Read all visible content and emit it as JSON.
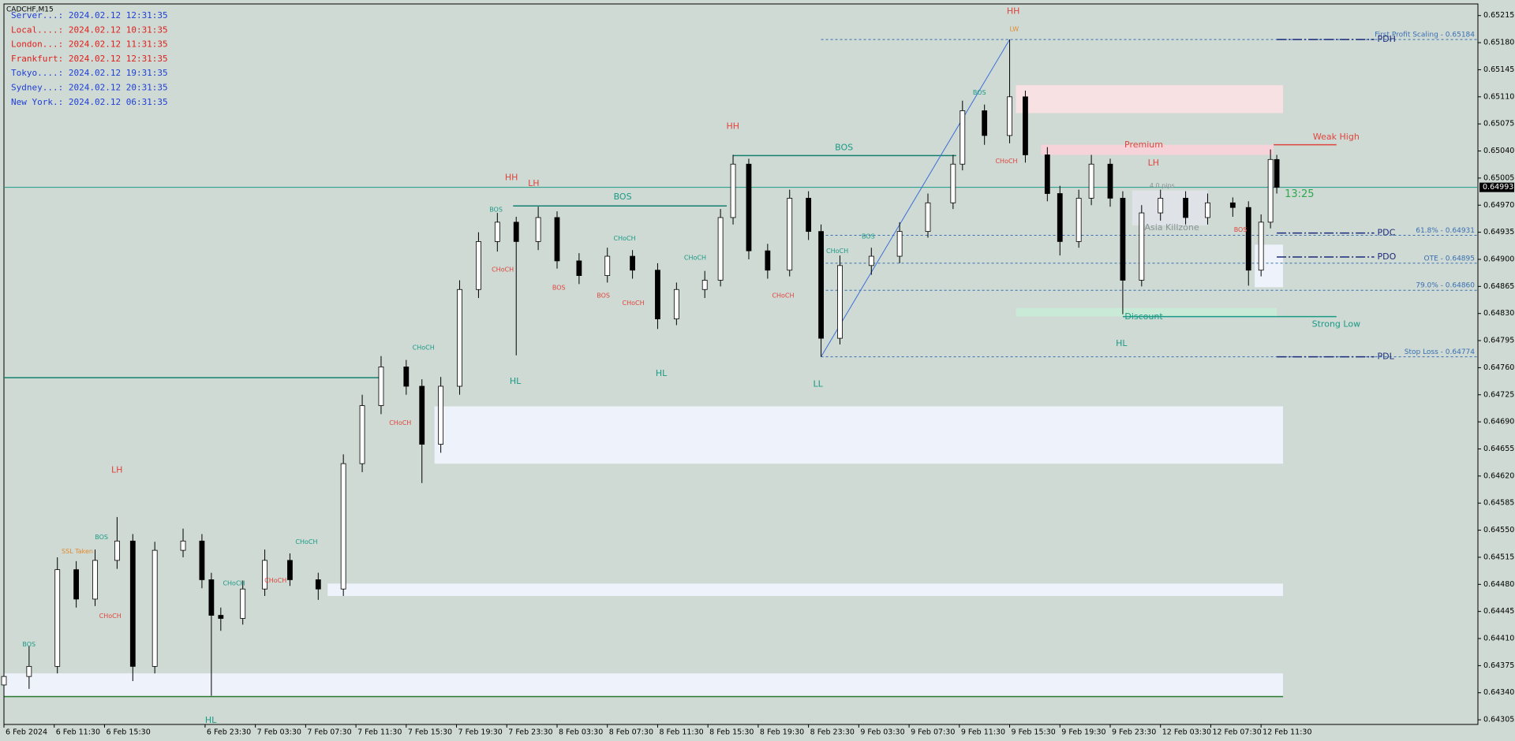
{
  "chart_data": {
    "type": "candlestick",
    "symbol": "CADCHF,M15",
    "clocks": [
      {
        "text": "Server...: 2024.02.12 12:31:35",
        "color": "#1f3fd6"
      },
      {
        "text": "Local....: 2024.02.12 10:31:35",
        "color": "#e0201a"
      },
      {
        "text": "London...: 2024.02.12 11:31:35",
        "color": "#e0201a"
      },
      {
        "text": "Frankfurt: 2024.02.12 12:31:35",
        "color": "#e0201a"
      },
      {
        "text": "Tokyo....: 2024.02.12 19:31:35",
        "color": "#1f3fd6"
      },
      {
        "text": "Sydney...: 2024.02.12 20:31:35",
        "color": "#1f3fd6"
      },
      {
        "text": "New York.: 2024.02.12 06:31:35",
        "color": "#1f3fd6"
      }
    ],
    "xlim": [
      0,
      469
    ],
    "xticks": [
      {
        "value": 0,
        "label": "6 Feb 2024"
      },
      {
        "value": 16,
        "label": "6 Feb 11:30"
      },
      {
        "value": 32,
        "label": "6 Feb 15:30"
      },
      {
        "value": 64,
        "label": "6 Feb 23:30"
      },
      {
        "value": 80,
        "label": "7 Feb 03:30"
      },
      {
        "value": 96,
        "label": "7 Feb 07:30"
      },
      {
        "value": 112,
        "label": "7 Feb 11:30"
      },
      {
        "value": 128,
        "label": "7 Feb 15:30"
      },
      {
        "value": 144,
        "label": "7 Feb 19:30"
      },
      {
        "value": 160,
        "label": "7 Feb 23:30"
      },
      {
        "value": 176,
        "label": "8 Feb 03:30"
      },
      {
        "value": 192,
        "label": "8 Feb 07:30"
      },
      {
        "value": 208,
        "label": "8 Feb 11:30"
      },
      {
        "value": 224,
        "label": "8 Feb 15:30"
      },
      {
        "value": 240,
        "label": "8 Feb 19:30"
      },
      {
        "value": 256,
        "label": "8 Feb 23:30"
      },
      {
        "value": 272,
        "label": "9 Feb 03:30"
      },
      {
        "value": 288,
        "label": "9 Feb 07:30"
      },
      {
        "value": 304,
        "label": "9 Feb 11:30"
      },
      {
        "value": 320,
        "label": "9 Feb 15:30"
      },
      {
        "value": 336,
        "label": "9 Feb 19:30"
      },
      {
        "value": 352,
        "label": "9 Feb 23:30"
      },
      {
        "value": 368,
        "label": "12 Feb 03:30"
      },
      {
        "value": 384,
        "label": "12 Feb 07:30"
      },
      {
        "value": 400,
        "label": "12 Feb 11:30"
      }
    ],
    "ylim": [
      0.64299,
      0.6523
    ],
    "yticks": [
      {
        "value": 0.65215,
        "label": "0.65215"
      },
      {
        "value": 0.6518,
        "label": "0.65180"
      },
      {
        "value": 0.65145,
        "label": "0.65145"
      },
      {
        "value": 0.6511,
        "label": "0.65110"
      },
      {
        "value": 0.65075,
        "label": "0.65075"
      },
      {
        "value": 0.6504,
        "label": "0.65040"
      },
      {
        "value": 0.65005,
        "label": "0.65005"
      },
      {
        "value": 0.6497,
        "label": "0.64970"
      },
      {
        "value": 0.64935,
        "label": "0.64935"
      },
      {
        "value": 0.649,
        "label": "0.64900"
      },
      {
        "value": 0.64865,
        "label": "0.64865"
      },
      {
        "value": 0.6483,
        "label": "0.64830"
      },
      {
        "value": 0.64795,
        "label": "0.64795"
      },
      {
        "value": 0.6476,
        "label": "0.64760"
      },
      {
        "value": 0.64725,
        "label": "0.64725"
      },
      {
        "value": 0.6469,
        "label": "0.64690"
      },
      {
        "value": 0.64655,
        "label": "0.64655"
      },
      {
        "value": 0.6462,
        "label": "0.64620"
      },
      {
        "value": 0.64585,
        "label": "0.64585"
      },
      {
        "value": 0.6455,
        "label": "0.64550"
      },
      {
        "value": 0.64515,
        "label": "0.64515"
      },
      {
        "value": 0.6448,
        "label": "0.64480"
      },
      {
        "value": 0.64445,
        "label": "0.64445"
      },
      {
        "value": 0.6441,
        "label": "0.64410"
      },
      {
        "value": 0.64375,
        "label": "0.64375"
      },
      {
        "value": 0.6434,
        "label": "0.64340"
      },
      {
        "value": 0.64305,
        "label": "0.64305"
      }
    ],
    "grid": false,
    "last_price": 0.64993,
    "candles": [
      {
        "x": 0,
        "open": 0.6435,
        "high": 0.6439,
        "low": 0.6433,
        "close": 0.64361
      },
      {
        "x": 8,
        "open": 0.64361,
        "high": 0.644,
        "low": 0.64345,
        "close": 0.64374
      },
      {
        "x": 17,
        "open": 0.64374,
        "high": 0.64515,
        "low": 0.64365,
        "close": 0.64499
      },
      {
        "x": 23,
        "open": 0.64499,
        "high": 0.6451,
        "low": 0.6445,
        "close": 0.64461
      },
      {
        "x": 29,
        "open": 0.64461,
        "high": 0.64525,
        "low": 0.64452,
        "close": 0.64511
      },
      {
        "x": 36,
        "open": 0.64511,
        "high": 0.64567,
        "low": 0.645,
        "close": 0.64536
      },
      {
        "x": 41,
        "open": 0.64536,
        "high": 0.64545,
        "low": 0.64355,
        "close": 0.64374
      },
      {
        "x": 48,
        "open": 0.64374,
        "high": 0.64535,
        "low": 0.64365,
        "close": 0.64524
      },
      {
        "x": 57,
        "open": 0.64524,
        "high": 0.64552,
        "low": 0.64515,
        "close": 0.64536
      },
      {
        "x": 63,
        "open": 0.64536,
        "high": 0.64545,
        "low": 0.64475,
        "close": 0.64486
      },
      {
        "x": 66,
        "open": 0.64486,
        "high": 0.64495,
        "low": 0.64336,
        "close": 0.6444
      },
      {
        "x": 69,
        "open": 0.6444,
        "high": 0.6445,
        "low": 0.6442,
        "close": 0.64436
      },
      {
        "x": 76,
        "open": 0.64436,
        "high": 0.64485,
        "low": 0.64428,
        "close": 0.64474
      },
      {
        "x": 83,
        "open": 0.64474,
        "high": 0.64525,
        "low": 0.64465,
        "close": 0.64511
      },
      {
        "x": 91,
        "open": 0.64511,
        "high": 0.6452,
        "low": 0.64478,
        "close": 0.64486
      },
      {
        "x": 100,
        "open": 0.64486,
        "high": 0.64495,
        "low": 0.6446,
        "close": 0.64474
      },
      {
        "x": 108,
        "open": 0.64474,
        "high": 0.64648,
        "low": 0.64465,
        "close": 0.64636
      },
      {
        "x": 114,
        "open": 0.64636,
        "high": 0.64725,
        "low": 0.64625,
        "close": 0.64711
      },
      {
        "x": 120,
        "open": 0.64711,
        "high": 0.64775,
        "low": 0.647,
        "close": 0.64761
      },
      {
        "x": 128,
        "open": 0.64761,
        "high": 0.6477,
        "low": 0.64725,
        "close": 0.64736
      },
      {
        "x": 133,
        "open": 0.64736,
        "high": 0.64745,
        "low": 0.64611,
        "close": 0.64661
      },
      {
        "x": 139,
        "open": 0.64661,
        "high": 0.64748,
        "low": 0.6465,
        "close": 0.64736
      },
      {
        "x": 145,
        "open": 0.64736,
        "high": 0.64873,
        "low": 0.64725,
        "close": 0.64861
      },
      {
        "x": 151,
        "open": 0.64861,
        "high": 0.64935,
        "low": 0.6485,
        "close": 0.64923
      },
      {
        "x": 157,
        "open": 0.64923,
        "high": 0.6496,
        "low": 0.6491,
        "close": 0.64948
      },
      {
        "x": 163,
        "open": 0.64948,
        "high": 0.64955,
        "low": 0.64776,
        "close": 0.64923
      },
      {
        "x": 170,
        "open": 0.64923,
        "high": 0.64968,
        "low": 0.64912,
        "close": 0.64954
      },
      {
        "x": 176,
        "open": 0.64954,
        "high": 0.64962,
        "low": 0.64888,
        "close": 0.64898
      },
      {
        "x": 183,
        "open": 0.64898,
        "high": 0.64908,
        "low": 0.64868,
        "close": 0.64879
      },
      {
        "x": 192,
        "open": 0.64879,
        "high": 0.64915,
        "low": 0.6487,
        "close": 0.64904
      },
      {
        "x": 200,
        "open": 0.64904,
        "high": 0.64912,
        "low": 0.64875,
        "close": 0.64886
      },
      {
        "x": 208,
        "open": 0.64886,
        "high": 0.64895,
        "low": 0.6481,
        "close": 0.64823
      },
      {
        "x": 214,
        "open": 0.64823,
        "high": 0.6487,
        "low": 0.64815,
        "close": 0.64861
      },
      {
        "x": 223,
        "open": 0.64861,
        "high": 0.64885,
        "low": 0.6485,
        "close": 0.64873
      },
      {
        "x": 228,
        "open": 0.64873,
        "high": 0.64965,
        "low": 0.64865,
        "close": 0.64954
      },
      {
        "x": 232,
        "open": 0.64954,
        "high": 0.65035,
        "low": 0.64945,
        "close": 0.65023
      },
      {
        "x": 237,
        "open": 0.65023,
        "high": 0.6503,
        "low": 0.649,
        "close": 0.64911
      },
      {
        "x": 243,
        "open": 0.64911,
        "high": 0.6492,
        "low": 0.64875,
        "close": 0.64886
      },
      {
        "x": 250,
        "open": 0.64886,
        "high": 0.6499,
        "low": 0.64878,
        "close": 0.64979
      },
      {
        "x": 256,
        "open": 0.64979,
        "high": 0.64988,
        "low": 0.64925,
        "close": 0.64936
      },
      {
        "x": 260,
        "open": 0.64936,
        "high": 0.64945,
        "low": 0.64774,
        "close": 0.64798
      },
      {
        "x": 266,
        "open": 0.64798,
        "high": 0.64905,
        "low": 0.6479,
        "close": 0.64892
      },
      {
        "x": 276,
        "open": 0.64892,
        "high": 0.64915,
        "low": 0.6488,
        "close": 0.64904
      },
      {
        "x": 285,
        "open": 0.64904,
        "high": 0.64948,
        "low": 0.64895,
        "close": 0.64936
      },
      {
        "x": 294,
        "open": 0.64936,
        "high": 0.64985,
        "low": 0.64928,
        "close": 0.64973
      },
      {
        "x": 302,
        "open": 0.64973,
        "high": 0.65035,
        "low": 0.64965,
        "close": 0.65023
      },
      {
        "x": 305,
        "open": 0.65023,
        "high": 0.65105,
        "low": 0.65015,
        "close": 0.65092
      },
      {
        "x": 312,
        "open": 0.65092,
        "high": 0.651,
        "low": 0.65048,
        "close": 0.6506
      },
      {
        "x": 320,
        "open": 0.6506,
        "high": 0.65184,
        "low": 0.6505,
        "close": 0.6511
      },
      {
        "x": 325,
        "open": 0.6511,
        "high": 0.65118,
        "low": 0.65025,
        "close": 0.65035
      },
      {
        "x": 332,
        "open": 0.65035,
        "high": 0.65045,
        "low": 0.64975,
        "close": 0.64985
      },
      {
        "x": 336,
        "open": 0.64985,
        "high": 0.64995,
        "low": 0.64905,
        "close": 0.64923
      },
      {
        "x": 342,
        "open": 0.64923,
        "high": 0.6499,
        "low": 0.64915,
        "close": 0.64979
      },
      {
        "x": 346,
        "open": 0.64979,
        "high": 0.65035,
        "low": 0.6497,
        "close": 0.65023
      },
      {
        "x": 352,
        "open": 0.65023,
        "high": 0.6503,
        "low": 0.64968,
        "close": 0.64979
      },
      {
        "x": 356,
        "open": 0.64979,
        "high": 0.64988,
        "low": 0.64829,
        "close": 0.64873
      },
      {
        "x": 362,
        "open": 0.64873,
        "high": 0.6497,
        "low": 0.64865,
        "close": 0.6496
      },
      {
        "x": 368,
        "open": 0.6496,
        "high": 0.6499,
        "low": 0.6495,
        "close": 0.64979
      },
      {
        "x": 376,
        "open": 0.64979,
        "high": 0.64988,
        "low": 0.64945,
        "close": 0.64954
      },
      {
        "x": 383,
        "open": 0.64954,
        "high": 0.64985,
        "low": 0.64945,
        "close": 0.64973
      },
      {
        "x": 391,
        "open": 0.64973,
        "high": 0.6498,
        "low": 0.64955,
        "close": 0.64967
      },
      {
        "x": 396,
        "open": 0.64967,
        "high": 0.64975,
        "low": 0.64866,
        "close": 0.64886
      },
      {
        "x": 400,
        "open": 0.64886,
        "high": 0.64958,
        "low": 0.64878,
        "close": 0.64948
      },
      {
        "x": 403,
        "open": 0.64948,
        "high": 0.65042,
        "low": 0.6494,
        "close": 0.65029
      },
      {
        "x": 405,
        "open": 0.65029,
        "high": 0.65035,
        "low": 0.64985,
        "close": 0.64993
      }
    ],
    "zones": [
      {
        "from": 322,
        "to": 407,
        "low": 0.65089,
        "high": 0.65125,
        "color": "#f8e1e3"
      },
      {
        "from": 330,
        "to": 404,
        "low": 0.65035,
        "high": 0.65048,
        "color": "#f6d3d8"
      },
      {
        "from": 137,
        "to": 407,
        "low": 0.64636,
        "high": 0.6471,
        "color": "#eef3fb"
      },
      {
        "from": 103,
        "to": 407,
        "low": 0.64465,
        "high": 0.64481,
        "color": "#eef3fb"
      },
      {
        "from": 0,
        "to": 407,
        "low": 0.64336,
        "high": 0.64365,
        "color": "#eef3fb"
      },
      {
        "from": 398,
        "to": 407,
        "low": 0.64864,
        "high": 0.64919,
        "color": "#eef3fb"
      },
      {
        "from": 322,
        "to": 405,
        "low": 0.64826,
        "high": 0.64837,
        "color": "#c9ead6"
      },
      {
        "from": 359,
        "to": 383,
        "low": 0.64944,
        "high": 0.64989,
        "color": "#dfe3e8"
      }
    ],
    "segments": [
      {
        "from": 162,
        "to": 230,
        "value": 0.64969,
        "color": "#13806e"
      },
      {
        "from": 232,
        "to": 303,
        "value": 0.65034,
        "color": "#13806e"
      },
      {
        "from": 0,
        "to": 120,
        "value": 0.64747,
        "color": "#13806e"
      },
      {
        "from": 0,
        "to": 407,
        "value": 0.64335,
        "color": "#2e7d32"
      },
      {
        "from": 404,
        "to": 424,
        "value": 0.65048,
        "color": "#e0443c"
      },
      {
        "from": 356,
        "to": 424,
        "value": 0.64826,
        "color": "#1a9a85"
      }
    ],
    "fib_levels": [
      {
        "label": "First Profit Scaling - 0.65184",
        "value": 0.65184
      },
      {
        "label": "61.8% - 0.64931",
        "value": 0.64931
      },
      {
        "label": "OTE - 0.64895",
        "value": 0.64895
      },
      {
        "label": "79.0% - 0.64860",
        "value": 0.6486
      },
      {
        "label": "Stop Loss - 0.64774",
        "value": 0.64774
      }
    ],
    "key_levels": [
      {
        "name": "PDH",
        "value": 0.65184
      },
      {
        "name": "PDC",
        "value": 0.64934
      },
      {
        "name": "PDO",
        "value": 0.64903
      },
      {
        "name": "PDL",
        "value": 0.64774
      }
    ],
    "annotations": [
      {
        "text": "HH",
        "color": "#e0443c"
      },
      {
        "text": "LW",
        "color": "#e08a2c"
      },
      {
        "text": "HH",
        "color": "#e0443c"
      },
      {
        "text": "HH",
        "color": "#e0443c"
      },
      {
        "text": "LH",
        "color": "#e0443c"
      },
      {
        "text": "LH",
        "color": "#e0443c"
      },
      {
        "text": "LH",
        "color": "#e0443c"
      },
      {
        "text": "BOS",
        "color": "#1a9a85"
      },
      {
        "text": "BOS",
        "color": "#1a9a85"
      },
      {
        "text": "HL",
        "color": "#1a9a85"
      },
      {
        "text": "HL",
        "color": "#1a9a85"
      },
      {
        "text": "LL",
        "color": "#1a9a85"
      },
      {
        "text": "HL",
        "color": "#1a9a85"
      },
      {
        "text": "HL",
        "color": "#1a9a85"
      },
      {
        "text": "Premium",
        "color": "#e0443c"
      },
      {
        "text": "Discount",
        "color": "#1a9a85"
      },
      {
        "text": "Weak High",
        "color": "#e0443c"
      },
      {
        "text": "Strong Low",
        "color": "#1a9a85"
      },
      {
        "text": "Asia Killzone",
        "color": "#8a9296"
      },
      {
        "text": "13:25",
        "color": "#2ea84a"
      },
      {
        "text": "4.0 pips",
        "color": "#8a9296"
      },
      {
        "text": "BOS",
        "color": "#1a9a85"
      },
      {
        "text": "CHoCH",
        "color": "#e0443c"
      },
      {
        "text": "BOS",
        "color": "#e0443c"
      },
      {
        "text": "CHoCH",
        "color": "#1a9a85"
      },
      {
        "text": "CHoCH",
        "color": "#e0443c"
      },
      {
        "text": "BOS",
        "color": "#e0443c"
      },
      {
        "text": "CHoCH",
        "color": "#1a9a85"
      },
      {
        "text": "CHoCH",
        "color": "#e0443c"
      },
      {
        "text": "CHoCH",
        "color": "#1a9a85"
      },
      {
        "text": "BOS",
        "color": "#1a9a85"
      },
      {
        "text": "BOS",
        "color": "#1a9a85"
      },
      {
        "text": "CHoCH",
        "color": "#e0443c"
      },
      {
        "text": "CHoCH",
        "color": "#1a9a85"
      },
      {
        "text": "CHoCH",
        "color": "#e0443c"
      },
      {
        "text": "CHoCH",
        "color": "#1a9a85"
      },
      {
        "text": "CHoCH",
        "color": "#e0443c"
      },
      {
        "text": "CHoCH",
        "color": "#1a9a85"
      },
      {
        "text": "BOS",
        "color": "#1a9a85"
      },
      {
        "text": "CHoCH",
        "color": "#e0443c"
      },
      {
        "text": "BOS",
        "color": "#1a9a85"
      },
      {
        "text": "BOS",
        "color": "#e0443c"
      },
      {
        "text": "SSL Taken",
        "color": "#e08a2c"
      }
    ]
  }
}
